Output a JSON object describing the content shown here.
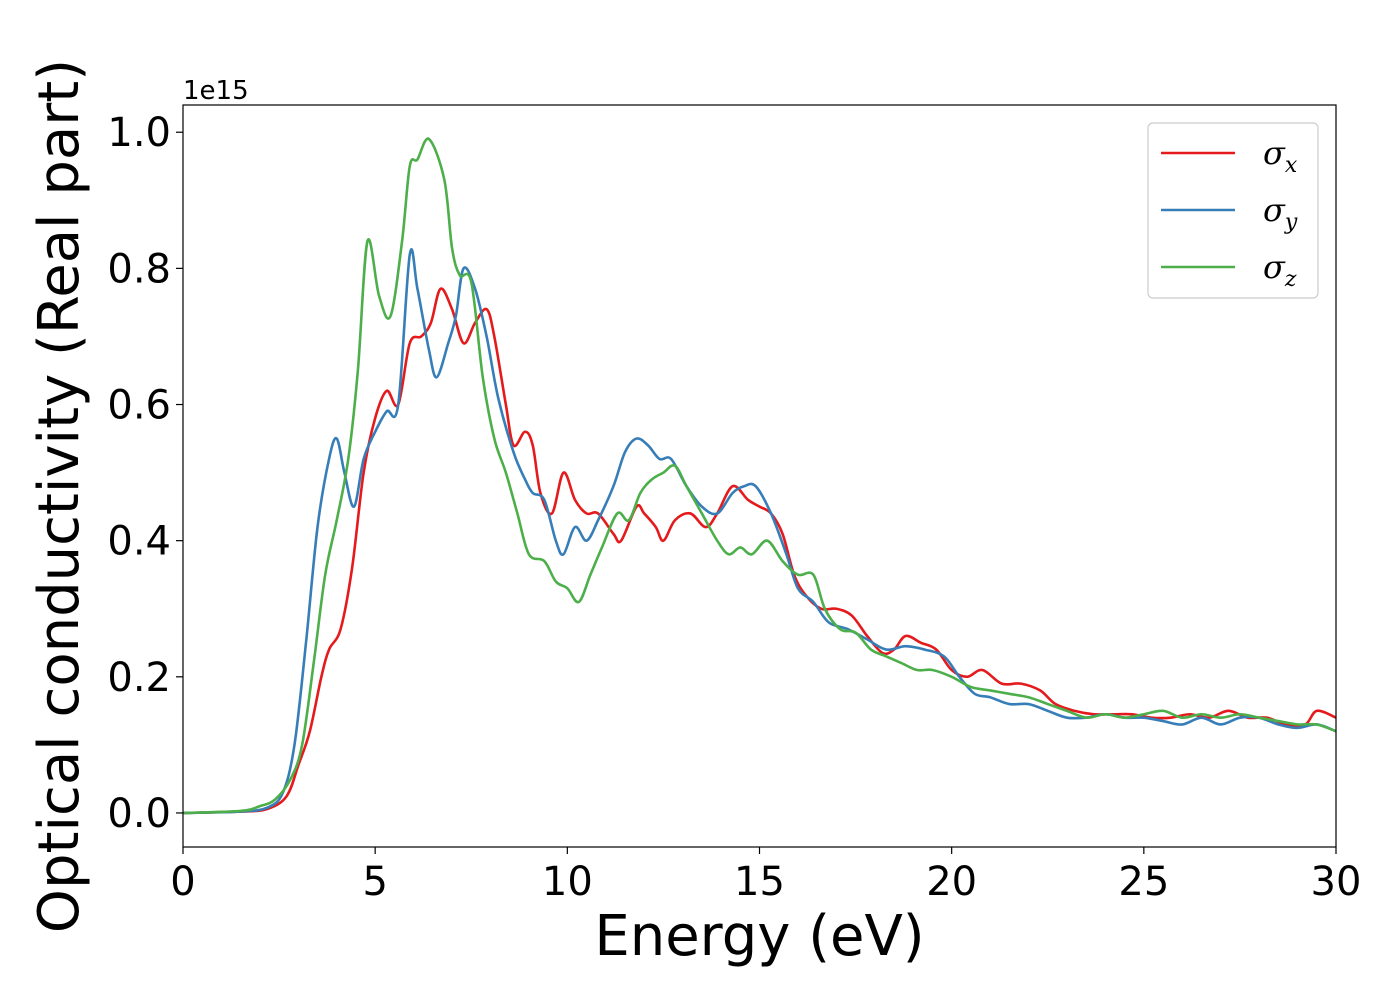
{
  "chart_data": {
    "type": "line",
    "xlabel": "Energy (eV)",
    "ylabel": "Optical conductivity (Real part)",
    "y_offset_label": "1e15",
    "y_scale": 1000000000000000.0,
    "xlim": [
      0,
      30
    ],
    "ylim": [
      -0.05,
      1.04
    ],
    "x_ticks": [
      0,
      5,
      10,
      15,
      20,
      25,
      30
    ],
    "x_tick_labels": [
      "0",
      "5",
      "10",
      "15",
      "20",
      "25",
      "30"
    ],
    "y_ticks": [
      0.0,
      0.2,
      0.4,
      0.6,
      0.8,
      1.0
    ],
    "y_tick_labels": [
      "0.0",
      "0.2",
      "0.4",
      "0.6",
      "0.8",
      "1.0"
    ],
    "grid": false,
    "legend_position": "top-right",
    "series": [
      {
        "name": "σx",
        "symbol": "σ",
        "subscript": "x",
        "color": "#e41a1c",
        "points": [
          [
            0,
            0
          ],
          [
            1.5,
            0.002
          ],
          [
            2.2,
            0.006
          ],
          [
            2.7,
            0.025
          ],
          [
            3.0,
            0.07
          ],
          [
            3.3,
            0.12
          ],
          [
            3.6,
            0.2
          ],
          [
            3.8,
            0.24
          ],
          [
            4.1,
            0.27
          ],
          [
            4.4,
            0.36
          ],
          [
            4.7,
            0.5
          ],
          [
            5.0,
            0.58
          ],
          [
            5.3,
            0.62
          ],
          [
            5.6,
            0.6
          ],
          [
            5.9,
            0.69
          ],
          [
            6.2,
            0.7
          ],
          [
            6.45,
            0.72
          ],
          [
            6.7,
            0.77
          ],
          [
            7.0,
            0.74
          ],
          [
            7.3,
            0.69
          ],
          [
            7.6,
            0.72
          ],
          [
            7.9,
            0.74
          ],
          [
            8.1,
            0.7
          ],
          [
            8.4,
            0.6
          ],
          [
            8.6,
            0.54
          ],
          [
            8.9,
            0.56
          ],
          [
            9.1,
            0.54
          ],
          [
            9.3,
            0.47
          ],
          [
            9.6,
            0.44
          ],
          [
            9.9,
            0.5
          ],
          [
            10.2,
            0.46
          ],
          [
            10.5,
            0.44
          ],
          [
            10.8,
            0.44
          ],
          [
            11.2,
            0.41
          ],
          [
            11.4,
            0.4
          ],
          [
            11.8,
            0.45
          ],
          [
            12.0,
            0.44
          ],
          [
            12.3,
            0.42
          ],
          [
            12.5,
            0.4
          ],
          [
            12.8,
            0.43
          ],
          [
            13.2,
            0.44
          ],
          [
            13.6,
            0.42
          ],
          [
            13.9,
            0.44
          ],
          [
            14.3,
            0.48
          ],
          [
            14.7,
            0.46
          ],
          [
            15.0,
            0.45
          ],
          [
            15.3,
            0.44
          ],
          [
            15.6,
            0.41
          ],
          [
            15.9,
            0.35
          ],
          [
            16.2,
            0.32
          ],
          [
            16.6,
            0.3
          ],
          [
            17.0,
            0.3
          ],
          [
            17.4,
            0.29
          ],
          [
            17.8,
            0.26
          ],
          [
            18.2,
            0.235
          ],
          [
            18.5,
            0.24
          ],
          [
            18.8,
            0.26
          ],
          [
            19.2,
            0.25
          ],
          [
            19.6,
            0.24
          ],
          [
            20.0,
            0.21
          ],
          [
            20.4,
            0.2
          ],
          [
            20.8,
            0.21
          ],
          [
            21.3,
            0.19
          ],
          [
            21.8,
            0.19
          ],
          [
            22.3,
            0.18
          ],
          [
            22.7,
            0.16
          ],
          [
            23.2,
            0.15
          ],
          [
            23.7,
            0.145
          ],
          [
            24.2,
            0.145
          ],
          [
            24.7,
            0.145
          ],
          [
            25.2,
            0.14
          ],
          [
            25.7,
            0.14
          ],
          [
            26.2,
            0.145
          ],
          [
            26.7,
            0.14
          ],
          [
            27.2,
            0.15
          ],
          [
            27.7,
            0.14
          ],
          [
            28.2,
            0.14
          ],
          [
            28.7,
            0.13
          ],
          [
            29.2,
            0.13
          ],
          [
            29.5,
            0.15
          ],
          [
            30,
            0.14
          ]
        ]
      },
      {
        "name": "σy",
        "symbol": "σ",
        "subscript": "y",
        "color": "#377eb8",
        "points": [
          [
            0,
            0
          ],
          [
            1.5,
            0.002
          ],
          [
            2.2,
            0.008
          ],
          [
            2.6,
            0.03
          ],
          [
            2.9,
            0.1
          ],
          [
            3.2,
            0.25
          ],
          [
            3.5,
            0.42
          ],
          [
            3.8,
            0.52
          ],
          [
            4.0,
            0.55
          ],
          [
            4.2,
            0.5
          ],
          [
            4.45,
            0.45
          ],
          [
            4.7,
            0.52
          ],
          [
            5.0,
            0.56
          ],
          [
            5.3,
            0.59
          ],
          [
            5.6,
            0.6
          ],
          [
            5.9,
            0.82
          ],
          [
            6.1,
            0.77
          ],
          [
            6.4,
            0.68
          ],
          [
            6.6,
            0.64
          ],
          [
            6.9,
            0.69
          ],
          [
            7.1,
            0.73
          ],
          [
            7.3,
            0.8
          ],
          [
            7.6,
            0.77
          ],
          [
            7.9,
            0.7
          ],
          [
            8.2,
            0.61
          ],
          [
            8.6,
            0.53
          ],
          [
            8.9,
            0.49
          ],
          [
            9.1,
            0.47
          ],
          [
            9.4,
            0.46
          ],
          [
            9.7,
            0.4
          ],
          [
            9.9,
            0.38
          ],
          [
            10.2,
            0.42
          ],
          [
            10.5,
            0.4
          ],
          [
            10.8,
            0.43
          ],
          [
            11.2,
            0.48
          ],
          [
            11.5,
            0.53
          ],
          [
            11.8,
            0.55
          ],
          [
            12.1,
            0.54
          ],
          [
            12.4,
            0.52
          ],
          [
            12.7,
            0.52
          ],
          [
            13.1,
            0.48
          ],
          [
            13.5,
            0.45
          ],
          [
            13.9,
            0.44
          ],
          [
            14.3,
            0.47
          ],
          [
            14.6,
            0.48
          ],
          [
            14.9,
            0.48
          ],
          [
            15.3,
            0.44
          ],
          [
            15.7,
            0.38
          ],
          [
            16.0,
            0.33
          ],
          [
            16.4,
            0.31
          ],
          [
            16.8,
            0.28
          ],
          [
            17.3,
            0.27
          ],
          [
            17.8,
            0.255
          ],
          [
            18.3,
            0.24
          ],
          [
            18.8,
            0.245
          ],
          [
            19.3,
            0.24
          ],
          [
            19.8,
            0.23
          ],
          [
            20.2,
            0.2
          ],
          [
            20.6,
            0.175
          ],
          [
            21.0,
            0.17
          ],
          [
            21.5,
            0.16
          ],
          [
            22.0,
            0.16
          ],
          [
            22.5,
            0.15
          ],
          [
            23.0,
            0.14
          ],
          [
            23.5,
            0.14
          ],
          [
            24.0,
            0.145
          ],
          [
            24.5,
            0.14
          ],
          [
            25.0,
            0.14
          ],
          [
            25.5,
            0.135
          ],
          [
            26.0,
            0.13
          ],
          [
            26.5,
            0.14
          ],
          [
            27.0,
            0.13
          ],
          [
            27.5,
            0.14
          ],
          [
            28.0,
            0.14
          ],
          [
            28.5,
            0.13
          ],
          [
            29.0,
            0.125
          ],
          [
            29.5,
            0.13
          ],
          [
            30,
            0.12
          ]
        ]
      },
      {
        "name": "σz",
        "symbol": "σ",
        "subscript": "z",
        "color": "#4daf4a",
        "points": [
          [
            0,
            0
          ],
          [
            1.5,
            0.003
          ],
          [
            2.0,
            0.01
          ],
          [
            2.4,
            0.02
          ],
          [
            2.8,
            0.05
          ],
          [
            3.1,
            0.1
          ],
          [
            3.4,
            0.22
          ],
          [
            3.7,
            0.35
          ],
          [
            4.0,
            0.43
          ],
          [
            4.3,
            0.52
          ],
          [
            4.55,
            0.65
          ],
          [
            4.8,
            0.84
          ],
          [
            5.1,
            0.76
          ],
          [
            5.4,
            0.73
          ],
          [
            5.7,
            0.84
          ],
          [
            5.9,
            0.95
          ],
          [
            6.1,
            0.96
          ],
          [
            6.4,
            0.99
          ],
          [
            6.8,
            0.93
          ],
          [
            7.0,
            0.83
          ],
          [
            7.2,
            0.79
          ],
          [
            7.5,
            0.78
          ],
          [
            7.8,
            0.64
          ],
          [
            8.1,
            0.55
          ],
          [
            8.4,
            0.5
          ],
          [
            8.7,
            0.44
          ],
          [
            9.0,
            0.38
          ],
          [
            9.4,
            0.37
          ],
          [
            9.7,
            0.34
          ],
          [
            10.0,
            0.33
          ],
          [
            10.3,
            0.31
          ],
          [
            10.6,
            0.35
          ],
          [
            10.9,
            0.39
          ],
          [
            11.3,
            0.44
          ],
          [
            11.6,
            0.43
          ],
          [
            11.9,
            0.47
          ],
          [
            12.2,
            0.49
          ],
          [
            12.5,
            0.5
          ],
          [
            12.8,
            0.51
          ],
          [
            13.1,
            0.48
          ],
          [
            13.5,
            0.44
          ],
          [
            13.9,
            0.4
          ],
          [
            14.2,
            0.38
          ],
          [
            14.5,
            0.39
          ],
          [
            14.8,
            0.38
          ],
          [
            15.2,
            0.4
          ],
          [
            15.6,
            0.37
          ],
          [
            16.0,
            0.35
          ],
          [
            16.4,
            0.35
          ],
          [
            16.7,
            0.3
          ],
          [
            17.1,
            0.27
          ],
          [
            17.5,
            0.265
          ],
          [
            17.9,
            0.24
          ],
          [
            18.3,
            0.23
          ],
          [
            18.7,
            0.22
          ],
          [
            19.1,
            0.21
          ],
          [
            19.5,
            0.21
          ],
          [
            20.0,
            0.2
          ],
          [
            20.5,
            0.185
          ],
          [
            21.0,
            0.18
          ],
          [
            21.5,
            0.175
          ],
          [
            22.0,
            0.17
          ],
          [
            22.5,
            0.16
          ],
          [
            23.0,
            0.15
          ],
          [
            23.5,
            0.14
          ],
          [
            24.0,
            0.145
          ],
          [
            24.5,
            0.14
          ],
          [
            25.0,
            0.145
          ],
          [
            25.5,
            0.15
          ],
          [
            26.0,
            0.14
          ],
          [
            26.5,
            0.145
          ],
          [
            27.0,
            0.14
          ],
          [
            27.5,
            0.145
          ],
          [
            28.0,
            0.14
          ],
          [
            28.5,
            0.135
          ],
          [
            29.0,
            0.13
          ],
          [
            29.5,
            0.13
          ],
          [
            30,
            0.12
          ]
        ]
      }
    ]
  }
}
